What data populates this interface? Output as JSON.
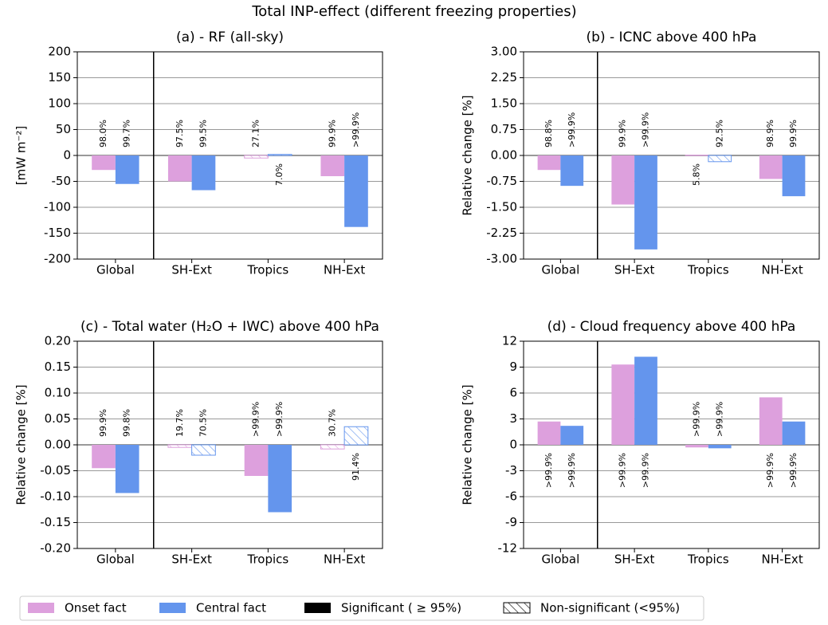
{
  "title": "Total INP-effect (different freezing properties)",
  "legend_extra": [
    "Significant ( ≥ 95%)",
    "Non-significant (<95%)"
  ],
  "chart_data": [
    {
      "type": "bar",
      "title": "(a) - RF (all-sky)",
      "ylabel": "[mW m⁻²]",
      "categories": [
        "Global",
        "SH-Ext",
        "Tropics",
        "NH-Ext"
      ],
      "series": [
        {
          "name": "Onset fact",
          "color": "#dda0dd",
          "values": [
            -28,
            -50,
            -5,
            -40
          ],
          "annotations": [
            "98.0%",
            "97.5%",
            "27.1%",
            "99.9%"
          ],
          "hatched": [
            false,
            false,
            true,
            false
          ]
        },
        {
          "name": "Central fact",
          "color": "#6495ed",
          "values": [
            -55,
            -67,
            2,
            -138
          ],
          "annotations": [
            "99.7%",
            "99.5%",
            "7.0%",
            ">99.9%"
          ],
          "hatched": [
            false,
            false,
            true,
            false
          ]
        }
      ],
      "ylim": [
        -200,
        200
      ],
      "yticks": [
        -200,
        -150,
        -100,
        -50,
        0,
        50,
        100,
        150,
        200
      ],
      "grid": true
    },
    {
      "type": "bar",
      "title": "(b) - ICNC above 400 hPa",
      "ylabel": "Relative change [%]",
      "categories": [
        "Global",
        "SH-Ext",
        "Tropics",
        "NH-Ext"
      ],
      "series": [
        {
          "name": "Onset fact",
          "color": "#dda0dd",
          "values": [
            -0.42,
            -1.42,
            0.01,
            -0.68
          ],
          "annotations": [
            "98.8%",
            "99.9%",
            "5.8%",
            "98.9%"
          ],
          "hatched": [
            false,
            false,
            true,
            false
          ]
        },
        {
          "name": "Central fact",
          "color": "#6495ed",
          "values": [
            -0.88,
            -2.72,
            -0.18,
            -1.18
          ],
          "annotations": [
            ">99.9%",
            ">99.9%",
            "92.5%",
            "99.9%"
          ],
          "hatched": [
            false,
            false,
            true,
            false
          ]
        }
      ],
      "ylim": [
        -3,
        3
      ],
      "yticks": [
        {
          "value": -3,
          "label": "-3.00"
        },
        {
          "value": -2.25,
          "label": "-2.25"
        },
        {
          "value": -1.5,
          "label": "-1.50"
        },
        {
          "value": -0.75,
          "label": "-0.75"
        },
        {
          "value": 0,
          "label": "0.00"
        },
        {
          "value": 0.75,
          "label": "0.75"
        },
        {
          "value": 1.5,
          "label": "1.50"
        },
        {
          "value": 2.25,
          "label": "2.25"
        },
        {
          "value": 3,
          "label": "3.00"
        }
      ],
      "grid": true
    },
    {
      "type": "bar",
      "title": "(c) - Total water (H₂O + IWC) above 400 hPa",
      "ylabel": "Relative change [%]",
      "categories": [
        "Global",
        "SH-Ext",
        "Tropics",
        "NH-Ext"
      ],
      "series": [
        {
          "name": "Onset fact",
          "color": "#dda0dd",
          "values": [
            -0.045,
            -0.005,
            -0.06,
            -0.008
          ],
          "annotations": [
            "99.9%",
            "19.7%",
            ">99.9%",
            "30.7%"
          ],
          "hatched": [
            false,
            true,
            false,
            true
          ]
        },
        {
          "name": "Central fact",
          "color": "#6495ed",
          "values": [
            -0.093,
            -0.02,
            -0.13,
            0.035
          ],
          "annotations": [
            "99.8%",
            "70.5%",
            ">99.9%",
            "91.4%"
          ],
          "hatched": [
            false,
            true,
            false,
            true
          ]
        }
      ],
      "ylim": [
        -0.2,
        0.2
      ],
      "yticks": [
        {
          "value": -0.2,
          "label": "-0.20"
        },
        {
          "value": -0.15,
          "label": "-0.15"
        },
        {
          "value": -0.1,
          "label": "-0.10"
        },
        {
          "value": -0.05,
          "label": "-0.05"
        },
        {
          "value": 0,
          "label": "0.00"
        },
        {
          "value": 0.05,
          "label": "0.05"
        },
        {
          "value": 0.1,
          "label": "0.10"
        },
        {
          "value": 0.15,
          "label": "0.15"
        },
        {
          "value": 0.2,
          "label": "0.20"
        }
      ],
      "grid": true
    },
    {
      "type": "bar",
      "title": "(d) - Cloud frequency above 400 hPa",
      "ylabel": "Relative change [%]",
      "categories": [
        "Global",
        "SH-Ext",
        "Tropics",
        "NH-Ext"
      ],
      "series": [
        {
          "name": "Onset fact",
          "color": "#dda0dd",
          "values": [
            2.7,
            9.3,
            -0.3,
            5.5
          ],
          "annotations": [
            ">99.9%",
            ">99.9%",
            ">99.9%",
            ">99.9%"
          ],
          "hatched": [
            false,
            false,
            false,
            false
          ]
        },
        {
          "name": "Central fact",
          "color": "#6495ed",
          "values": [
            2.2,
            10.2,
            -0.4,
            2.7
          ],
          "annotations": [
            ">99.9%",
            ">99.9%",
            ">99.9%",
            ">99.9%"
          ],
          "hatched": [
            false,
            false,
            false,
            false
          ]
        }
      ],
      "ylim": [
        -12,
        12
      ],
      "yticks": [
        -12,
        -9,
        -6,
        -3,
        0,
        3,
        6,
        9,
        12
      ],
      "grid": true
    }
  ]
}
